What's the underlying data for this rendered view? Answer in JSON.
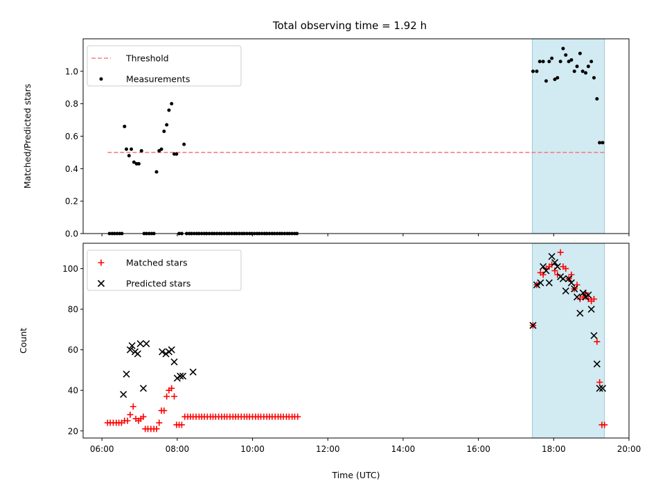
{
  "title": "Total observing time = 1.92 h",
  "colors": {
    "threshold": "#f08080",
    "measurement": "#000000",
    "matched": "#ff0000",
    "predicted": "#000000",
    "span": "#add8e6"
  },
  "chart_data": [
    {
      "type": "scatter",
      "panel": "top",
      "xlabel": "",
      "ylabel": "Matched/Predicted stars",
      "xlim": [
        5.5,
        20.0
      ],
      "ylim": [
        0.0,
        1.2
      ],
      "yticks": [
        0.0,
        0.2,
        0.4,
        0.6,
        0.8,
        1.0
      ],
      "ytick_labels": [
        "0.0",
        "0.2",
        "0.4",
        "0.6",
        "0.8",
        "1.0"
      ],
      "legend": {
        "placement": "upper-left",
        "entries": [
          "Threshold",
          "Measurements"
        ]
      },
      "highlight_span": [
        17.43,
        19.35
      ],
      "series": [
        {
          "name": "Threshold",
          "kind": "line",
          "style": "dashed",
          "x": [
            6.15,
            19.35
          ],
          "y": [
            0.5,
            0.5
          ]
        },
        {
          "name": "Measurements",
          "kind": "scatter",
          "x": [
            6.2,
            6.27,
            6.33,
            6.4,
            6.47,
            6.53,
            6.6,
            6.65,
            6.72,
            6.78,
            6.85,
            6.92,
            6.98,
            7.05,
            7.12,
            7.18,
            7.25,
            7.32,
            7.38,
            7.45,
            7.52,
            7.58,
            7.65,
            7.72,
            7.78,
            7.85,
            7.92,
            7.98,
            8.05,
            8.12,
            8.18,
            8.25,
            8.32,
            8.38,
            8.45,
            8.52,
            8.58,
            8.65,
            8.72,
            8.78,
            8.85,
            8.92,
            8.98,
            9.05,
            9.12,
            9.18,
            9.25,
            9.32,
            9.38,
            9.45,
            9.52,
            9.58,
            9.65,
            9.72,
            9.78,
            9.85,
            9.92,
            9.98,
            10.05,
            10.12,
            10.18,
            10.25,
            10.32,
            10.38,
            10.45,
            10.52,
            10.58,
            10.65,
            10.72,
            10.78,
            10.85,
            10.92,
            10.98,
            11.05,
            11.12,
            11.18,
            17.45,
            17.55,
            17.63,
            17.72,
            17.8,
            17.88,
            17.95,
            18.03,
            18.1,
            18.18,
            18.25,
            18.32,
            18.4,
            18.47,
            18.55,
            18.62,
            18.7,
            18.77,
            18.85,
            18.92,
            19.0,
            19.07,
            19.15,
            19.22,
            19.3
          ],
          "y": [
            0.0,
            0.0,
            0.0,
            0.0,
            0.0,
            0.0,
            0.66,
            0.52,
            0.48,
            0.52,
            0.44,
            0.43,
            0.43,
            0.51,
            0.0,
            0.0,
            0.0,
            0.0,
            0.0,
            0.38,
            0.51,
            0.52,
            0.63,
            0.67,
            0.76,
            0.8,
            0.49,
            0.49,
            0.0,
            0.0,
            0.55,
            0.0,
            0.0,
            0.0,
            0.0,
            0.0,
            0.0,
            0.0,
            0.0,
            0.0,
            0.0,
            0.0,
            0.0,
            0.0,
            0.0,
            0.0,
            0.0,
            0.0,
            0.0,
            0.0,
            0.0,
            0.0,
            0.0,
            0.0,
            0.0,
            0.0,
            0.0,
            0.0,
            0.0,
            0.0,
            0.0,
            0.0,
            0.0,
            0.0,
            0.0,
            0.0,
            0.0,
            0.0,
            0.0,
            0.0,
            0.0,
            0.0,
            0.0,
            0.0,
            0.0,
            0.0,
            1.0,
            1.0,
            1.06,
            1.06,
            0.94,
            1.06,
            1.08,
            0.95,
            0.96,
            1.06,
            1.14,
            1.1,
            1.06,
            1.07,
            1.0,
            1.03,
            1.11,
            1.0,
            0.99,
            1.03,
            1.06,
            0.96,
            0.83,
            0.56,
            0.56
          ]
        }
      ]
    },
    {
      "type": "scatter",
      "panel": "bottom",
      "xlabel": "Time (UTC)",
      "ylabel": "Count",
      "xlim": [
        5.5,
        20.0
      ],
      "ylim": [
        16.5,
        112.5
      ],
      "xticks": [
        6,
        8,
        10,
        12,
        14,
        16,
        18,
        20
      ],
      "xtick_labels": [
        "06:00",
        "08:00",
        "10:00",
        "12:00",
        "14:00",
        "16:00",
        "18:00",
        "20:00"
      ],
      "yticks": [
        20,
        40,
        60,
        80,
        100
      ],
      "ytick_labels": [
        "20",
        "40",
        "60",
        "80",
        "100"
      ],
      "legend": {
        "placement": "upper-left",
        "entries": [
          "Matched stars",
          "Predicted stars"
        ]
      },
      "highlight_span": [
        17.43,
        19.35
      ],
      "series": [
        {
          "name": "Matched stars",
          "marker": "plus",
          "x": [
            6.15,
            6.22,
            6.3,
            6.38,
            6.45,
            6.52,
            6.6,
            6.68,
            6.75,
            6.83,
            6.9,
            6.97,
            7.03,
            7.1,
            7.15,
            7.22,
            7.3,
            7.38,
            7.45,
            7.52,
            7.58,
            7.65,
            7.72,
            7.78,
            7.85,
            7.92,
            7.98,
            8.05,
            8.12,
            8.2,
            8.28,
            8.35,
            8.42,
            8.5,
            8.58,
            8.65,
            8.72,
            8.8,
            8.88,
            8.95,
            9.02,
            9.1,
            9.18,
            9.25,
            9.32,
            9.4,
            9.48,
            9.55,
            9.62,
            9.7,
            9.78,
            9.85,
            9.92,
            10.0,
            10.08,
            10.15,
            10.22,
            10.3,
            10.38,
            10.45,
            10.52,
            10.6,
            10.68,
            10.75,
            10.82,
            10.9,
            10.97,
            11.05,
            11.12,
            11.2,
            17.45,
            17.55,
            17.65,
            17.72,
            17.8,
            17.88,
            17.95,
            18.03,
            18.1,
            18.18,
            18.25,
            18.32,
            18.4,
            18.47,
            18.55,
            18.62,
            18.7,
            18.78,
            18.85,
            18.92,
            19.0,
            19.07,
            19.15,
            19.22,
            19.28,
            19.35
          ],
          "y": [
            24,
            24,
            24,
            24,
            24,
            24,
            25,
            25,
            28,
            32,
            26,
            25,
            26,
            27,
            21,
            21,
            21,
            21,
            21,
            24,
            30,
            30,
            37,
            40,
            41,
            37,
            23,
            23,
            23,
            27,
            27,
            27,
            27,
            27,
            27,
            27,
            27,
            27,
            27,
            27,
            27,
            27,
            27,
            27,
            27,
            27,
            27,
            27,
            27,
            27,
            27,
            27,
            27,
            27,
            27,
            27,
            27,
            27,
            27,
            27,
            27,
            27,
            27,
            27,
            27,
            27,
            27,
            27,
            27,
            27,
            72,
            92,
            98,
            97,
            100,
            101,
            102,
            99,
            97,
            108,
            101,
            100,
            95,
            97,
            90,
            92,
            85,
            86,
            88,
            85,
            84,
            85,
            64,
            44,
            23,
            23
          ]
        },
        {
          "name": "Predicted stars",
          "marker": "x",
          "x": [
            6.57,
            6.65,
            6.75,
            6.8,
            6.88,
            6.95,
            7.02,
            7.1,
            7.18,
            7.6,
            7.7,
            7.78,
            7.85,
            7.92,
            8.0,
            8.08,
            8.15,
            8.42,
            17.45,
            17.55,
            17.65,
            17.72,
            17.8,
            17.88,
            17.95,
            18.03,
            18.1,
            18.18,
            18.25,
            18.32,
            18.4,
            18.47,
            18.55,
            18.62,
            18.7,
            18.78,
            18.85,
            18.92,
            19.0,
            19.07,
            19.15,
            19.22,
            19.3
          ],
          "y": [
            38,
            48,
            60,
            62,
            59,
            58,
            63,
            41,
            63,
            59,
            58,
            59,
            60,
            54,
            46,
            47,
            47,
            49,
            72,
            92,
            93,
            101,
            99,
            93,
            106,
            103,
            101,
            96,
            95,
            89,
            95,
            93,
            90,
            86,
            78,
            88,
            86,
            87,
            80,
            67,
            53,
            41,
            41
          ]
        }
      ]
    }
  ]
}
